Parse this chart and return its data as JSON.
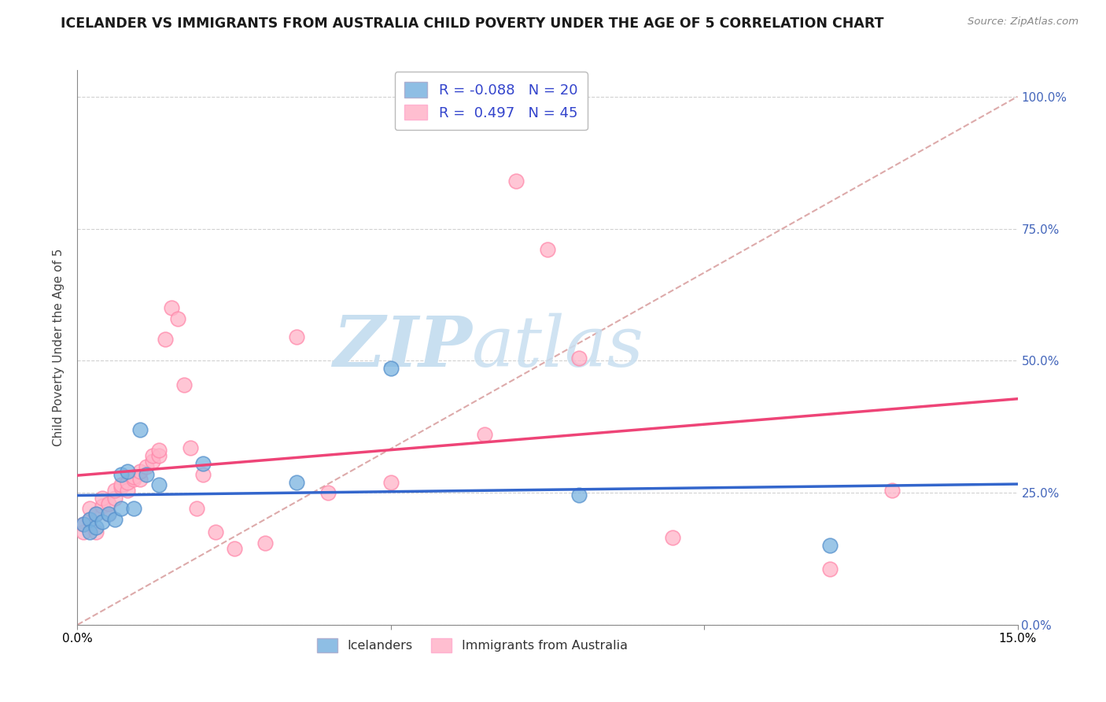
{
  "title": "ICELANDER VS IMMIGRANTS FROM AUSTRALIA CHILD POVERTY UNDER THE AGE OF 5 CORRELATION CHART",
  "source": "Source: ZipAtlas.com",
  "ylabel": "Child Poverty Under the Age of 5",
  "xlim": [
    0.0,
    0.15
  ],
  "ylim": [
    0.0,
    1.05
  ],
  "x_ticks": [
    0.0,
    0.05,
    0.1,
    0.15
  ],
  "x_tick_labels": [
    "0.0%",
    "",
    "",
    "15.0%"
  ],
  "y_ticks": [
    0.0,
    0.25,
    0.5,
    0.75,
    1.0
  ],
  "y_tick_labels_right": [
    "0.0%",
    "25.0%",
    "50.0%",
    "75.0%",
    "100.0%"
  ],
  "iceland_color": "#7ab3e0",
  "iceland_edge_color": "#5590cc",
  "australia_color": "#ffb3c8",
  "australia_edge_color": "#ff88aa",
  "trend_iceland_color": "#3366cc",
  "trend_australia_color": "#ee4477",
  "iceland_R": -0.088,
  "iceland_N": 20,
  "australia_R": 0.497,
  "australia_N": 45,
  "legend_color": "#3344cc",
  "watermark_zip_color": "#c8dff0",
  "watermark_atlas_color": "#c8dff0",
  "grid_color": "#cccccc",
  "background_color": "#ffffff",
  "title_fontsize": 12.5,
  "label_fontsize": 11,
  "tick_fontsize": 11,
  "right_tick_color": "#4466bb",
  "iceland_scatter_x": [
    0.001,
    0.002,
    0.002,
    0.003,
    0.003,
    0.004,
    0.005,
    0.006,
    0.007,
    0.007,
    0.008,
    0.009,
    0.01,
    0.011,
    0.013,
    0.02,
    0.035,
    0.05,
    0.08,
    0.12
  ],
  "iceland_scatter_y": [
    0.19,
    0.2,
    0.175,
    0.185,
    0.21,
    0.195,
    0.21,
    0.2,
    0.22,
    0.285,
    0.29,
    0.22,
    0.37,
    0.285,
    0.265,
    0.305,
    0.27,
    0.485,
    0.245,
    0.15
  ],
  "australia_scatter_x": [
    0.001,
    0.001,
    0.002,
    0.002,
    0.003,
    0.003,
    0.004,
    0.004,
    0.005,
    0.005,
    0.006,
    0.006,
    0.007,
    0.007,
    0.008,
    0.008,
    0.009,
    0.009,
    0.01,
    0.01,
    0.011,
    0.012,
    0.012,
    0.013,
    0.013,
    0.014,
    0.015,
    0.016,
    0.017,
    0.018,
    0.019,
    0.02,
    0.022,
    0.025,
    0.03,
    0.035,
    0.04,
    0.05,
    0.065,
    0.07,
    0.075,
    0.08,
    0.095,
    0.12,
    0.13
  ],
  "australia_scatter_y": [
    0.175,
    0.19,
    0.2,
    0.22,
    0.175,
    0.21,
    0.225,
    0.24,
    0.21,
    0.23,
    0.24,
    0.255,
    0.26,
    0.265,
    0.255,
    0.27,
    0.275,
    0.28,
    0.275,
    0.29,
    0.3,
    0.31,
    0.32,
    0.32,
    0.33,
    0.54,
    0.6,
    0.58,
    0.455,
    0.335,
    0.22,
    0.285,
    0.175,
    0.145,
    0.155,
    0.545,
    0.25,
    0.27,
    0.36,
    0.84,
    0.71,
    0.505,
    0.165,
    0.105,
    0.255
  ]
}
